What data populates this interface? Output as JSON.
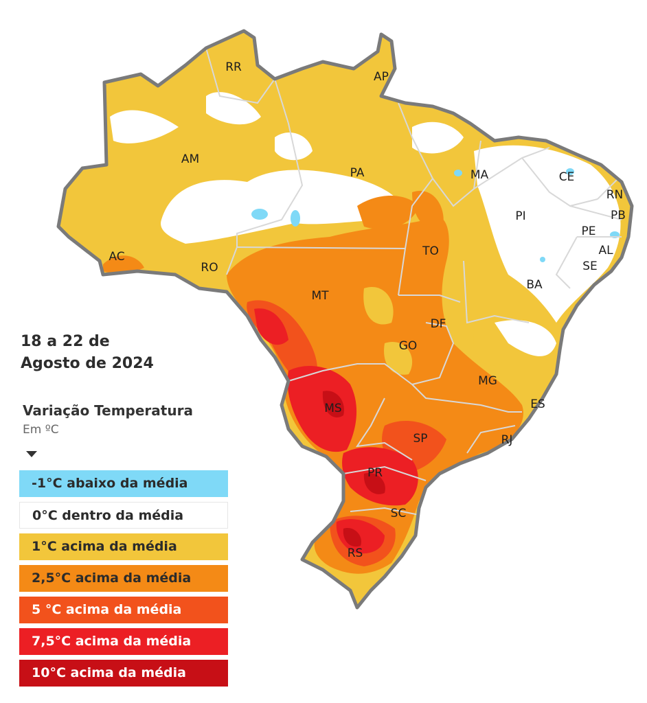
{
  "period": {
    "line1": "18 a 22 de",
    "line2": "Agosto de 2024"
  },
  "legend": {
    "title": "Variação Temperatura",
    "unit": "Em ºC",
    "items": [
      {
        "label": "-1°C abaixo da média",
        "color": "#7fd9f7"
      },
      {
        "label": "0°C dentro da média",
        "color": "#ffffff"
      },
      {
        "label": "1°C acima da média",
        "color": "#f2c63b"
      },
      {
        "label": "2,5°C acima da média",
        "color": "#f48a16"
      },
      {
        "label": "5 °C acima da média",
        "color": "#f2521c"
      },
      {
        "label": "7,5°C acima da média",
        "color": "#ec1f24"
      },
      {
        "label": "10°C acima da média",
        "color": "#c70f16"
      }
    ]
  },
  "states": {
    "RR": "RR",
    "AP": "AP",
    "AM": "AM",
    "PA": "PA",
    "MA": "MA",
    "CE": "CE",
    "RN": "RN",
    "PB": "PB",
    "PI": "PI",
    "PE": "PE",
    "AL": "AL",
    "SE": "SE",
    "AC": "AC",
    "RO": "RO",
    "TO": "TO",
    "BA": "BA",
    "MT": "MT",
    "DF": "DF",
    "GO": "GO",
    "MG": "MG",
    "ES": "ES",
    "MS": "MS",
    "SP": "SP",
    "RJ": "RJ",
    "PR": "PR",
    "SC": "SC",
    "RS": "RS"
  },
  "colors": {
    "border": "#7a7a7a",
    "stateLine": "#d8d8d8"
  }
}
